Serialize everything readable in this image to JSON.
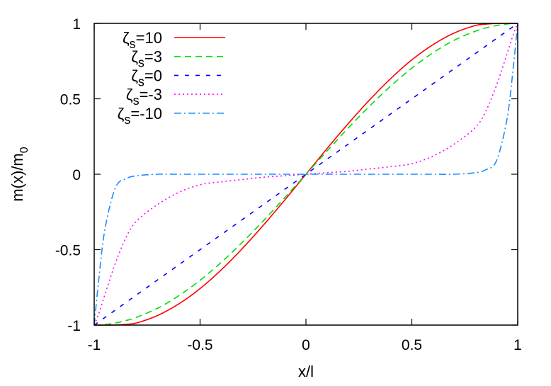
{
  "chart_data": {
    "type": "line",
    "xlabel": "x/l",
    "ylabel": {
      "main": "m(x)/m",
      "sub": "0"
    },
    "xlim": [
      -1,
      1
    ],
    "ylim": [
      -1,
      1
    ],
    "xticks": [
      "-1",
      "-0.5",
      "0",
      "0.5",
      "1"
    ],
    "yticks": [
      "-1",
      "-0.5",
      "0",
      "0.5",
      "1"
    ],
    "xtick_values": [
      -1,
      -0.5,
      0,
      0.5,
      1
    ],
    "ytick_values": [
      -1,
      -0.5,
      0,
      0.5,
      1
    ],
    "grid": false,
    "legend_position": "top-left",
    "x": [
      -1,
      -0.98,
      -0.95,
      -0.9,
      -0.85,
      -0.8,
      -0.7,
      -0.6,
      -0.5,
      -0.4,
      -0.3,
      -0.2,
      -0.1,
      0,
      0.1,
      0.2,
      0.3,
      0.4,
      0.5,
      0.6,
      0.7,
      0.8,
      0.85,
      0.9,
      0.95,
      0.98,
      1
    ],
    "series": [
      {
        "name": "ζs=10",
        "symbol": "ζ",
        "sub": "s",
        "rest": "=10",
        "color": "#ff0000",
        "dash": "solid",
        "values": [
          -1,
          -1,
          -1,
          -0.999,
          -0.995,
          -0.986,
          -0.936,
          -0.859,
          -0.758,
          -0.634,
          -0.492,
          -0.336,
          -0.171,
          0,
          0.171,
          0.336,
          0.492,
          0.634,
          0.758,
          0.859,
          0.936,
          0.986,
          0.995,
          0.999,
          1,
          1,
          1
        ]
      },
      {
        "name": "ζs=3",
        "symbol": "ζ",
        "sub": "s",
        "rest": "=3",
        "color": "#00dd00",
        "dash": "dashed",
        "values": [
          -1,
          -0.999,
          -0.996,
          -0.986,
          -0.97,
          -0.948,
          -0.888,
          -0.805,
          -0.703,
          -0.584,
          -0.451,
          -0.307,
          -0.155,
          0,
          0.155,
          0.307,
          0.451,
          0.584,
          0.703,
          0.805,
          0.888,
          0.948,
          0.97,
          0.986,
          0.996,
          0.999,
          1
        ]
      },
      {
        "name": "ζs=0",
        "symbol": "ζ",
        "sub": "s",
        "rest": "=0",
        "color": "#0000ff",
        "dash": "short-dashed",
        "values": [
          -1,
          -0.98,
          -0.95,
          -0.9,
          -0.85,
          -0.8,
          -0.7,
          -0.6,
          -0.5,
          -0.4,
          -0.3,
          -0.2,
          -0.1,
          0,
          0.1,
          0.2,
          0.3,
          0.4,
          0.5,
          0.6,
          0.7,
          0.8,
          0.85,
          0.9,
          0.95,
          0.98,
          1
        ]
      },
      {
        "name": "ζs=-3",
        "symbol": "ζ",
        "sub": "s",
        "rest": "=-3",
        "color": "#ff00ff",
        "dash": "dotted",
        "values": [
          -1,
          -0.93,
          -0.8,
          -0.59,
          -0.42,
          -0.31,
          -0.2,
          -0.12,
          -0.07,
          -0.05,
          -0.035,
          -0.02,
          -0.01,
          0,
          0.01,
          0.02,
          0.035,
          0.05,
          0.07,
          0.12,
          0.2,
          0.31,
          0.42,
          0.59,
          0.8,
          0.93,
          1
        ]
      },
      {
        "name": "ζs=-10",
        "symbol": "ζ",
        "sub": "s",
        "rest": "=-10",
        "color": "#1e8cff",
        "dash": "dash-dot",
        "values": [
          -1,
          -0.72,
          -0.37,
          -0.09,
          -0.03,
          -0.01,
          0,
          0,
          0,
          0,
          0,
          0,
          0,
          0,
          0,
          0,
          0,
          0,
          0,
          0,
          0,
          0.01,
          0.03,
          0.09,
          0.37,
          0.72,
          1
        ]
      }
    ]
  }
}
